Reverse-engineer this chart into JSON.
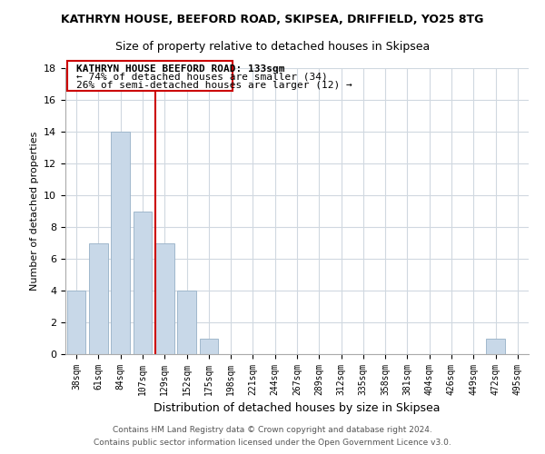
{
  "title": "KATHRYN HOUSE, BEEFORD ROAD, SKIPSEA, DRIFFIELD, YO25 8TG",
  "subtitle": "Size of property relative to detached houses in Skipsea",
  "xlabel": "Distribution of detached houses by size in Skipsea",
  "ylabel": "Number of detached properties",
  "bar_color": "#c8d8e8",
  "bar_edge_color": "#a0b8cc",
  "categories": [
    "38sqm",
    "61sqm",
    "84sqm",
    "107sqm",
    "129sqm",
    "152sqm",
    "175sqm",
    "198sqm",
    "221sqm",
    "244sqm",
    "267sqm",
    "289sqm",
    "312sqm",
    "335sqm",
    "358sqm",
    "381sqm",
    "404sqm",
    "426sqm",
    "449sqm",
    "472sqm",
    "495sqm"
  ],
  "values": [
    4,
    7,
    14,
    9,
    7,
    4,
    1,
    0,
    0,
    0,
    0,
    0,
    0,
    0,
    0,
    0,
    0,
    0,
    0,
    1,
    0
  ],
  "ylim": [
    0,
    18
  ],
  "yticks": [
    0,
    2,
    4,
    6,
    8,
    10,
    12,
    14,
    16,
    18
  ],
  "property_line_label": "KATHRYN HOUSE BEEFORD ROAD: 133sqm",
  "annotation_line1": "← 74% of detached houses are smaller (34)",
  "annotation_line2": "26% of semi-detached houses are larger (12) →",
  "footer1": "Contains HM Land Registry data © Crown copyright and database right 2024.",
  "footer2": "Contains public sector information licensed under the Open Government Licence v3.0.",
  "bg_color": "#ffffff",
  "grid_color": "#d0d8e0",
  "annotation_box_color": "#ffffff",
  "annotation_box_edge": "#cc0000",
  "property_line_color": "#cc0000",
  "property_line_x": 3.57
}
